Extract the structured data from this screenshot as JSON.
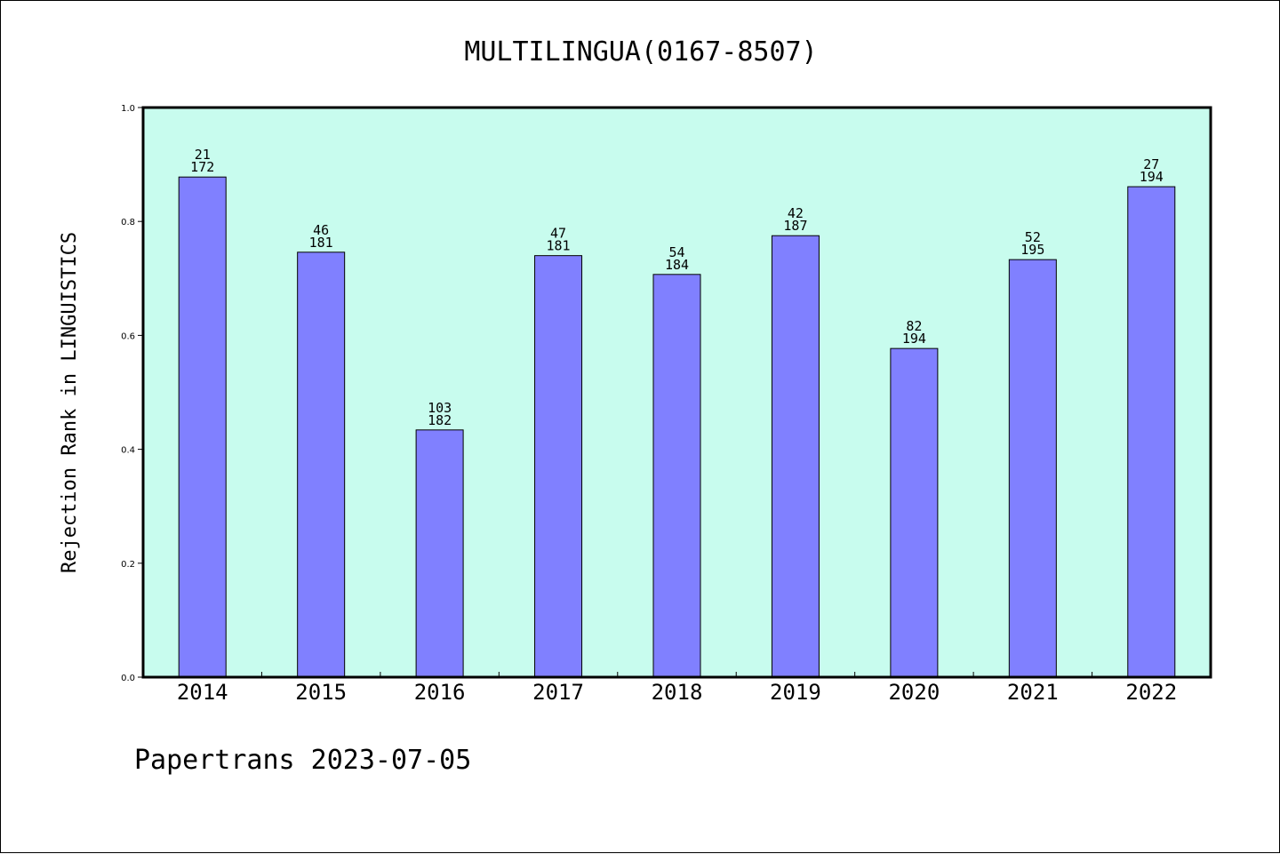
{
  "chart_data": {
    "type": "bar",
    "title": "MULTILINGUA(0167-8507)",
    "xlabel": "",
    "ylabel": "Rejection Rank in LINGUISTICS",
    "categories": [
      "2014",
      "2015",
      "2016",
      "2017",
      "2018",
      "2019",
      "2020",
      "2021",
      "2022"
    ],
    "values": [
      0.878,
      0.746,
      0.434,
      0.74,
      0.707,
      0.775,
      0.577,
      0.733,
      0.861
    ],
    "bar_labels": [
      [
        "21",
        "172"
      ],
      [
        "46",
        "181"
      ],
      [
        "103",
        "182"
      ],
      [
        "47",
        "181"
      ],
      [
        "54",
        "184"
      ],
      [
        "42",
        "187"
      ],
      [
        "82",
        "194"
      ],
      [
        "52",
        "195"
      ],
      [
        "27",
        "194"
      ]
    ],
    "ylim": [
      0,
      1.0
    ],
    "yticks": [
      "0.0",
      "0.2",
      "0.4",
      "0.6",
      "0.8",
      "1.0"
    ],
    "grid": false,
    "colors": {
      "plot_background": "#c8fcee",
      "bar_fill": "#8080ff",
      "bar_stroke": "#000000",
      "axes": "#000000"
    }
  },
  "footer": {
    "text": "Papertrans 2023-07-05"
  }
}
